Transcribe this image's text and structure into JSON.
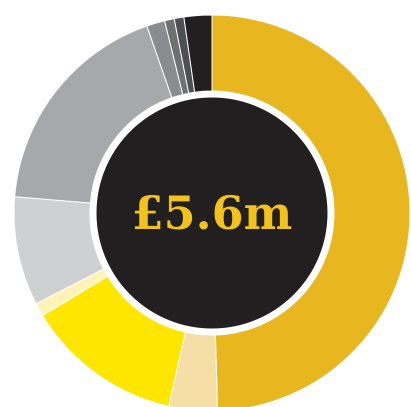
{
  "chart_data": {
    "type": "pie",
    "center_label": "£5.6m",
    "center_color": "#221f20",
    "center_text_color": "#f3c21b",
    "values": [
      50.2,
      4.0,
      13.0,
      1.1,
      9.0,
      18.6,
      1.5,
      0.8,
      0.8,
      2.3
    ],
    "colors": [
      "#e8b61f",
      "#f5dfa6",
      "#ffe600",
      "#fff3b8",
      "#cfd0d2",
      "#a6a8ab",
      "#8a8c8f",
      "#6e7072",
      "#4e4f51",
      "#221f20"
    ]
  }
}
